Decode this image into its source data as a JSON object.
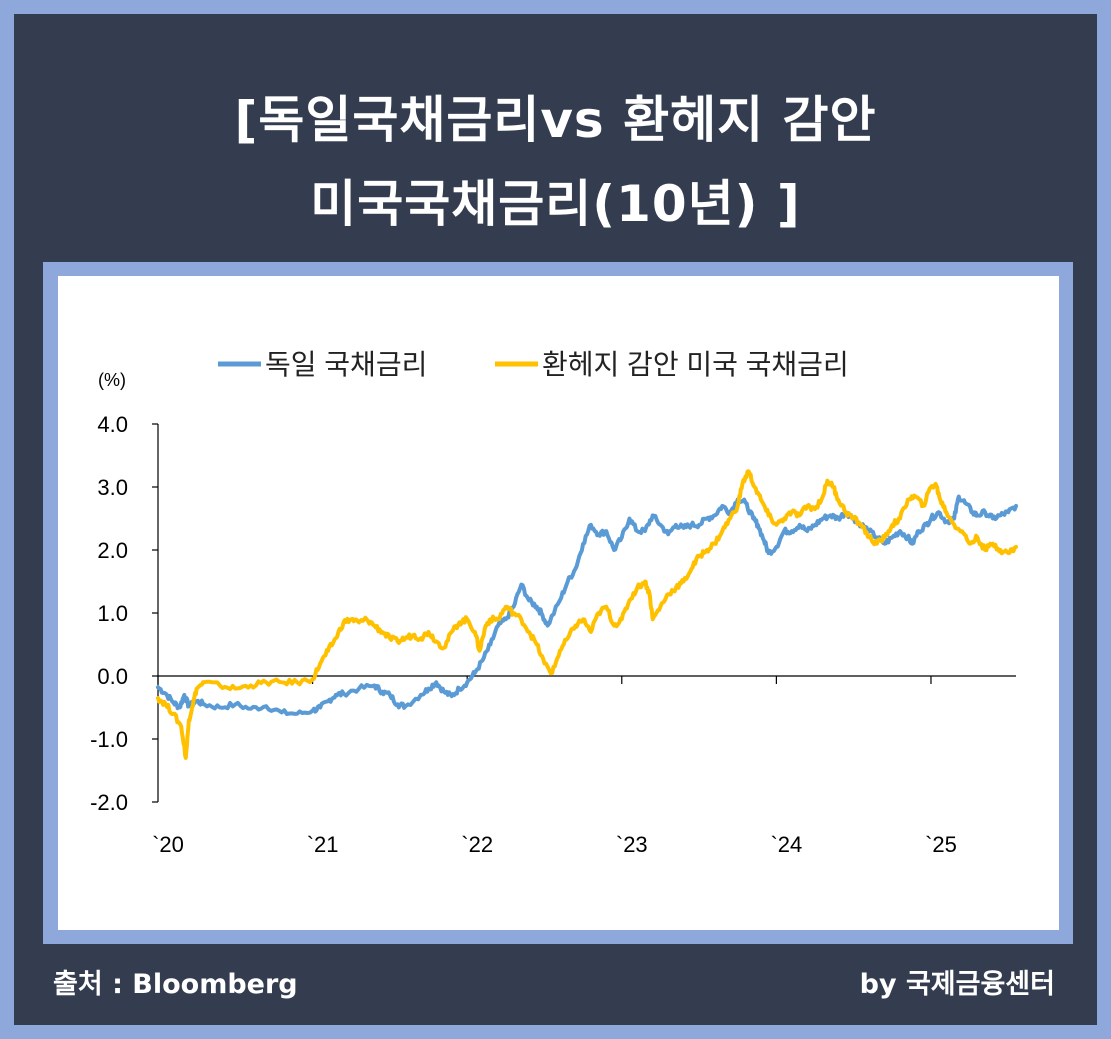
{
  "title": {
    "line1": "[독일국채금리vs 환헤지 감안",
    "line2": "미국국채금리(10년) ]"
  },
  "footer": {
    "source": "출처 : Bloomberg",
    "credit": "by 국제금융센터"
  },
  "colors": {
    "background_dark": "#343d50",
    "border_blue": "#8fa8dc",
    "german": "#5b9bd5",
    "us_hedged": "#ffc000"
  },
  "chart_data": {
    "type": "line",
    "title": "",
    "xlabel": "",
    "ylabel": "(%)",
    "ylim": [
      -2.0,
      4.0
    ],
    "xlim": [
      2020.0,
      2025.55
    ],
    "yticks": [
      "4.0",
      "3.0",
      "2.0",
      "1.0",
      "0.0",
      "-1.0",
      "-2.0"
    ],
    "xticks": [
      {
        "x": 2020,
        "label": "`20"
      },
      {
        "x": 2021,
        "label": "`21"
      },
      {
        "x": 2022,
        "label": "`22"
      },
      {
        "x": 2023,
        "label": "`23"
      },
      {
        "x": 2024,
        "label": "`24"
      },
      {
        "x": 2025,
        "label": "`25"
      }
    ],
    "legend_position": "top",
    "grid": false,
    "series": [
      {
        "name": "독일 국채금리",
        "color": "#5b9bd5",
        "points": [
          [
            2020.0,
            -0.18
          ],
          [
            2020.05,
            -0.28
          ],
          [
            2020.1,
            -0.42
          ],
          [
            2020.14,
            -0.5
          ],
          [
            2020.17,
            -0.3
          ],
          [
            2020.2,
            -0.48
          ],
          [
            2020.25,
            -0.4
          ],
          [
            2020.3,
            -0.45
          ],
          [
            2020.4,
            -0.5
          ],
          [
            2020.5,
            -0.45
          ],
          [
            2020.6,
            -0.52
          ],
          [
            2020.7,
            -0.48
          ],
          [
            2020.8,
            -0.58
          ],
          [
            2020.9,
            -0.6
          ],
          [
            2021.0,
            -0.55
          ],
          [
            2021.05,
            -0.5
          ],
          [
            2021.1,
            -0.4
          ],
          [
            2021.15,
            -0.3
          ],
          [
            2021.2,
            -0.28
          ],
          [
            2021.3,
            -0.2
          ],
          [
            2021.4,
            -0.15
          ],
          [
            2021.45,
            -0.25
          ],
          [
            2021.5,
            -0.3
          ],
          [
            2021.55,
            -0.45
          ],
          [
            2021.6,
            -0.48
          ],
          [
            2021.7,
            -0.3
          ],
          [
            2021.75,
            -0.2
          ],
          [
            2021.8,
            -0.1
          ],
          [
            2021.85,
            -0.25
          ],
          [
            2021.9,
            -0.32
          ],
          [
            2021.95,
            -0.2
          ],
          [
            2022.0,
            -0.1
          ],
          [
            2022.05,
            0.05
          ],
          [
            2022.1,
            0.25
          ],
          [
            2022.15,
            0.5
          ],
          [
            2022.2,
            0.8
          ],
          [
            2022.25,
            0.9
          ],
          [
            2022.3,
            1.1
          ],
          [
            2022.35,
            1.45
          ],
          [
            2022.4,
            1.2
          ],
          [
            2022.45,
            1.1
          ],
          [
            2022.48,
            1.0
          ],
          [
            2022.52,
            0.8
          ],
          [
            2022.6,
            1.2
          ],
          [
            2022.65,
            1.5
          ],
          [
            2022.7,
            1.7
          ],
          [
            2022.75,
            2.1
          ],
          [
            2022.8,
            2.4
          ],
          [
            2022.85,
            2.25
          ],
          [
            2022.9,
            2.3
          ],
          [
            2022.95,
            2.0
          ],
          [
            2023.0,
            2.2
          ],
          [
            2023.05,
            2.5
          ],
          [
            2023.1,
            2.3
          ],
          [
            2023.15,
            2.3
          ],
          [
            2023.2,
            2.55
          ],
          [
            2023.25,
            2.4
          ],
          [
            2023.3,
            2.25
          ],
          [
            2023.35,
            2.4
          ],
          [
            2023.4,
            2.35
          ],
          [
            2023.45,
            2.4
          ],
          [
            2023.5,
            2.4
          ],
          [
            2023.55,
            2.5
          ],
          [
            2023.6,
            2.55
          ],
          [
            2023.65,
            2.7
          ],
          [
            2023.7,
            2.6
          ],
          [
            2023.75,
            2.8
          ],
          [
            2023.8,
            2.75
          ],
          [
            2023.85,
            2.5
          ],
          [
            2023.88,
            2.4
          ],
          [
            2023.92,
            2.15
          ],
          [
            2023.95,
            1.95
          ],
          [
            2024.0,
            2.05
          ],
          [
            2024.05,
            2.3
          ],
          [
            2024.1,
            2.3
          ],
          [
            2024.15,
            2.4
          ],
          [
            2024.2,
            2.3
          ],
          [
            2024.25,
            2.4
          ],
          [
            2024.3,
            2.5
          ],
          [
            2024.35,
            2.55
          ],
          [
            2024.4,
            2.5
          ],
          [
            2024.45,
            2.6
          ],
          [
            2024.5,
            2.5
          ],
          [
            2024.55,
            2.4
          ],
          [
            2024.6,
            2.3
          ],
          [
            2024.65,
            2.2
          ],
          [
            2024.7,
            2.1
          ],
          [
            2024.75,
            2.2
          ],
          [
            2024.8,
            2.3
          ],
          [
            2024.85,
            2.2
          ],
          [
            2024.88,
            2.1
          ],
          [
            2024.92,
            2.3
          ],
          [
            2024.97,
            2.4
          ],
          [
            2025.0,
            2.5
          ],
          [
            2025.05,
            2.6
          ],
          [
            2025.1,
            2.45
          ],
          [
            2025.15,
            2.5
          ],
          [
            2025.18,
            2.85
          ],
          [
            2025.22,
            2.75
          ],
          [
            2025.27,
            2.6
          ],
          [
            2025.3,
            2.55
          ],
          [
            2025.35,
            2.6
          ],
          [
            2025.4,
            2.5
          ],
          [
            2025.45,
            2.55
          ],
          [
            2025.5,
            2.6
          ],
          [
            2025.55,
            2.7
          ]
        ]
      },
      {
        "name": "환헤지 감안 미국 국채금리",
        "color": "#ffc000",
        "points": [
          [
            2020.0,
            -0.35
          ],
          [
            2020.05,
            -0.45
          ],
          [
            2020.1,
            -0.6
          ],
          [
            2020.15,
            -0.8
          ],
          [
            2020.18,
            -1.3
          ],
          [
            2020.2,
            -0.7
          ],
          [
            2020.22,
            -0.5
          ],
          [
            2020.25,
            -0.2
          ],
          [
            2020.3,
            -0.1
          ],
          [
            2020.4,
            -0.15
          ],
          [
            2020.5,
            -0.2
          ],
          [
            2020.6,
            -0.15
          ],
          [
            2020.7,
            -0.1
          ],
          [
            2020.8,
            -0.1
          ],
          [
            2020.9,
            -0.1
          ],
          [
            2021.0,
            -0.05
          ],
          [
            2021.05,
            0.2
          ],
          [
            2021.1,
            0.4
          ],
          [
            2021.15,
            0.6
          ],
          [
            2021.2,
            0.85
          ],
          [
            2021.25,
            0.9
          ],
          [
            2021.3,
            0.85
          ],
          [
            2021.35,
            0.9
          ],
          [
            2021.4,
            0.8
          ],
          [
            2021.45,
            0.7
          ],
          [
            2021.5,
            0.6
          ],
          [
            2021.55,
            0.55
          ],
          [
            2021.6,
            0.6
          ],
          [
            2021.65,
            0.65
          ],
          [
            2021.7,
            0.6
          ],
          [
            2021.75,
            0.7
          ],
          [
            2021.8,
            0.55
          ],
          [
            2021.85,
            0.45
          ],
          [
            2021.9,
            0.7
          ],
          [
            2021.95,
            0.85
          ],
          [
            2022.0,
            0.9
          ],
          [
            2022.05,
            0.7
          ],
          [
            2022.08,
            0.4
          ],
          [
            2022.12,
            0.8
          ],
          [
            2022.15,
            0.9
          ],
          [
            2022.2,
            0.9
          ],
          [
            2022.25,
            1.1
          ],
          [
            2022.3,
            1.0
          ],
          [
            2022.35,
            0.9
          ],
          [
            2022.4,
            0.7
          ],
          [
            2022.45,
            0.5
          ],
          [
            2022.5,
            0.2
          ],
          [
            2022.55,
            0.05
          ],
          [
            2022.6,
            0.4
          ],
          [
            2022.65,
            0.6
          ],
          [
            2022.7,
            0.8
          ],
          [
            2022.75,
            0.9
          ],
          [
            2022.8,
            0.7
          ],
          [
            2022.85,
            1.0
          ],
          [
            2022.9,
            1.1
          ],
          [
            2022.95,
            0.8
          ],
          [
            2023.0,
            0.9
          ],
          [
            2023.05,
            1.2
          ],
          [
            2023.1,
            1.4
          ],
          [
            2023.15,
            1.5
          ],
          [
            2023.18,
            1.3
          ],
          [
            2023.2,
            0.9
          ],
          [
            2023.25,
            1.1
          ],
          [
            2023.3,
            1.3
          ],
          [
            2023.35,
            1.4
          ],
          [
            2023.4,
            1.5
          ],
          [
            2023.45,
            1.7
          ],
          [
            2023.5,
            1.9
          ],
          [
            2023.55,
            2.0
          ],
          [
            2023.6,
            2.1
          ],
          [
            2023.65,
            2.3
          ],
          [
            2023.7,
            2.5
          ],
          [
            2023.75,
            2.7
          ],
          [
            2023.78,
            3.05
          ],
          [
            2023.82,
            3.25
          ],
          [
            2023.86,
            3.0
          ],
          [
            2023.9,
            2.8
          ],
          [
            2023.95,
            2.55
          ],
          [
            2024.0,
            2.4
          ],
          [
            2024.05,
            2.5
          ],
          [
            2024.1,
            2.6
          ],
          [
            2024.15,
            2.55
          ],
          [
            2024.2,
            2.7
          ],
          [
            2024.25,
            2.65
          ],
          [
            2024.3,
            2.85
          ],
          [
            2024.33,
            3.1
          ],
          [
            2024.37,
            3.0
          ],
          [
            2024.4,
            2.8
          ],
          [
            2024.45,
            2.6
          ],
          [
            2024.5,
            2.5
          ],
          [
            2024.55,
            2.4
          ],
          [
            2024.6,
            2.2
          ],
          [
            2024.65,
            2.1
          ],
          [
            2024.7,
            2.2
          ],
          [
            2024.75,
            2.4
          ],
          [
            2024.8,
            2.5
          ],
          [
            2024.85,
            2.8
          ],
          [
            2024.9,
            2.85
          ],
          [
            2024.95,
            2.7
          ],
          [
            2025.0,
            3.0
          ],
          [
            2025.03,
            3.05
          ],
          [
            2025.06,
            2.8
          ],
          [
            2025.1,
            2.6
          ],
          [
            2025.15,
            2.4
          ],
          [
            2025.2,
            2.3
          ],
          [
            2025.25,
            2.1
          ],
          [
            2025.3,
            2.2
          ],
          [
            2025.35,
            2.0
          ],
          [
            2025.4,
            2.1
          ],
          [
            2025.45,
            2.0
          ],
          [
            2025.5,
            1.95
          ],
          [
            2025.55,
            2.05
          ]
        ]
      }
    ]
  }
}
